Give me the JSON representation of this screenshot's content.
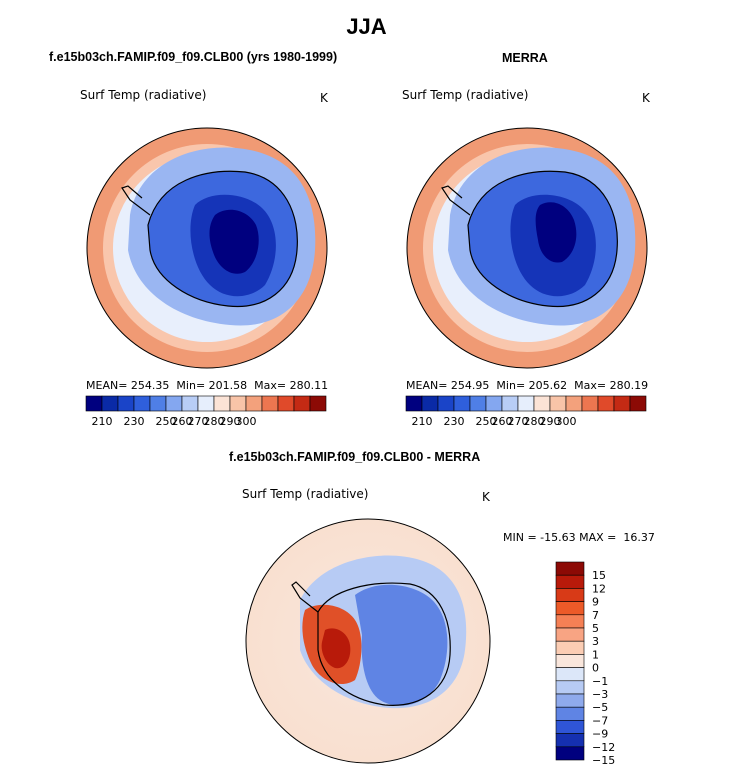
{
  "title": "JJA",
  "panel_left": {
    "heading": "f.e15b03ch.FAMIP.f09_f09.CLB00 (yrs 1980-1999)",
    "field": "Surf Temp (radiative)",
    "units": "K",
    "stats": {
      "mean_label": "MEAN=",
      "mean": "254.35",
      "min_label": "Min=",
      "min": "201.58",
      "max_label": "Max=",
      "max": "280.11"
    }
  },
  "panel_right": {
    "heading": "MERRA",
    "field": "Surf Temp (radiative)",
    "units": "K",
    "stats": {
      "mean_label": "MEAN=",
      "mean": "254.95",
      "min_label": "Min=",
      "min": "205.62",
      "max_label": "Max=",
      "max": "280.19"
    }
  },
  "panel_diff": {
    "heading": "f.e15b03ch.FAMIP.f09_f09.CLB00 - MERRA",
    "field": "Surf Temp (radiative)",
    "units": "K",
    "minmax": "MIN = -15.63 MAX =  16.37"
  },
  "chart_data": [
    {
      "type": "heatmap",
      "name": "f.e15b03ch.FAMIP.f09_f09.CLB00 (yrs 1980-1999)",
      "projection": "south polar stereographic",
      "field": "Surf Temp (radiative)",
      "units": "K",
      "mean": 254.35,
      "min": 201.58,
      "max": 280.11,
      "colorbar_levels": [
        210,
        220,
        230,
        240,
        250,
        255,
        260,
        265,
        270,
        275,
        280,
        285,
        290,
        295,
        300
      ],
      "colorbar_labels": [
        "210",
        "230",
        "250",
        "260",
        "270",
        "280",
        "290",
        "300"
      ],
      "colorbar_orientation": "horizontal"
    },
    {
      "type": "heatmap",
      "name": "MERRA",
      "projection": "south polar stereographic",
      "field": "Surf Temp (radiative)",
      "units": "K",
      "mean": 254.95,
      "min": 205.62,
      "max": 280.19,
      "colorbar_levels": [
        210,
        220,
        230,
        240,
        250,
        255,
        260,
        265,
        270,
        275,
        280,
        285,
        290,
        295,
        300
      ],
      "colorbar_labels": [
        "210",
        "230",
        "250",
        "260",
        "270",
        "280",
        "290",
        "300"
      ],
      "colorbar_orientation": "horizontal"
    },
    {
      "type": "heatmap",
      "name": "f.e15b03ch.FAMIP.f09_f09.CLB00 - MERRA",
      "projection": "south polar stereographic",
      "field": "Surf Temp (radiative)",
      "units": "K",
      "min": -15.63,
      "max": 16.37,
      "colorbar_levels": [
        15,
        12,
        9,
        7,
        5,
        3,
        1,
        0,
        -1,
        -3,
        -5,
        -7,
        -9,
        -12,
        -15
      ],
      "colorbar_labels": [
        "15",
        "12",
        "9",
        "7",
        "5",
        "3",
        "1",
        "0",
        "−1",
        "−3",
        "−5",
        "−7",
        "−9",
        "−12",
        "−15"
      ],
      "colorbar_orientation": "vertical"
    }
  ],
  "colors": {
    "abs_bar": [
      "#00007f",
      "#0a2aa6",
      "#1a44c8",
      "#2f5fdc",
      "#4f7fe6",
      "#84a7f0",
      "#b8cdf6",
      "#e6eefc",
      "#fbe3d6",
      "#f8c4a8",
      "#f3a17c",
      "#ec7650",
      "#e04a2a",
      "#c42a14",
      "#8c0a05"
    ],
    "diff_bar": [
      "#8c0a05",
      "#b81a0a",
      "#d83a17",
      "#ec5a28",
      "#f58055",
      "#f8a483",
      "#fbcdb4",
      "#f9e6dc",
      "#dce7f9",
      "#b7cbf4",
      "#8faaec",
      "#5f84e4",
      "#2f55d6",
      "#1530b0",
      "#00007f"
    ]
  }
}
